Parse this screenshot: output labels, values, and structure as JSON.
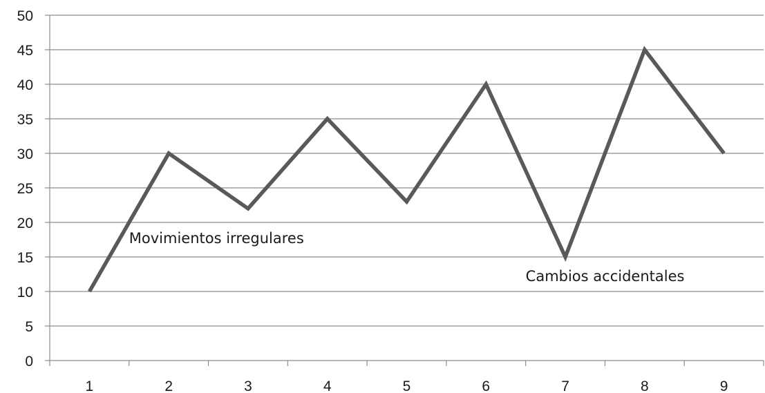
{
  "chart_data": {
    "type": "line",
    "title": "",
    "xlabel": "",
    "ylabel": "",
    "categories": [
      "1",
      "2",
      "3",
      "4",
      "5",
      "6",
      "7",
      "8",
      "9"
    ],
    "series": [
      {
        "values": [
          10,
          30,
          22,
          35,
          23,
          40,
          15,
          45,
          30
        ]
      }
    ],
    "ylim": [
      0,
      50
    ],
    "yticks": [
      0,
      5,
      10,
      15,
      20,
      25,
      30,
      35,
      40,
      45,
      50
    ],
    "grid": true,
    "legend": "none",
    "annotations": [
      {
        "text": "Movimientos irregulares",
        "x": 2,
        "y": 17
      },
      {
        "text": "Cambios accidentales",
        "x": 7,
        "y": 11.5
      }
    ],
    "colors": {
      "line": "#595959",
      "grid": "#8c8c8c",
      "axis": "#8c8c8c"
    }
  }
}
